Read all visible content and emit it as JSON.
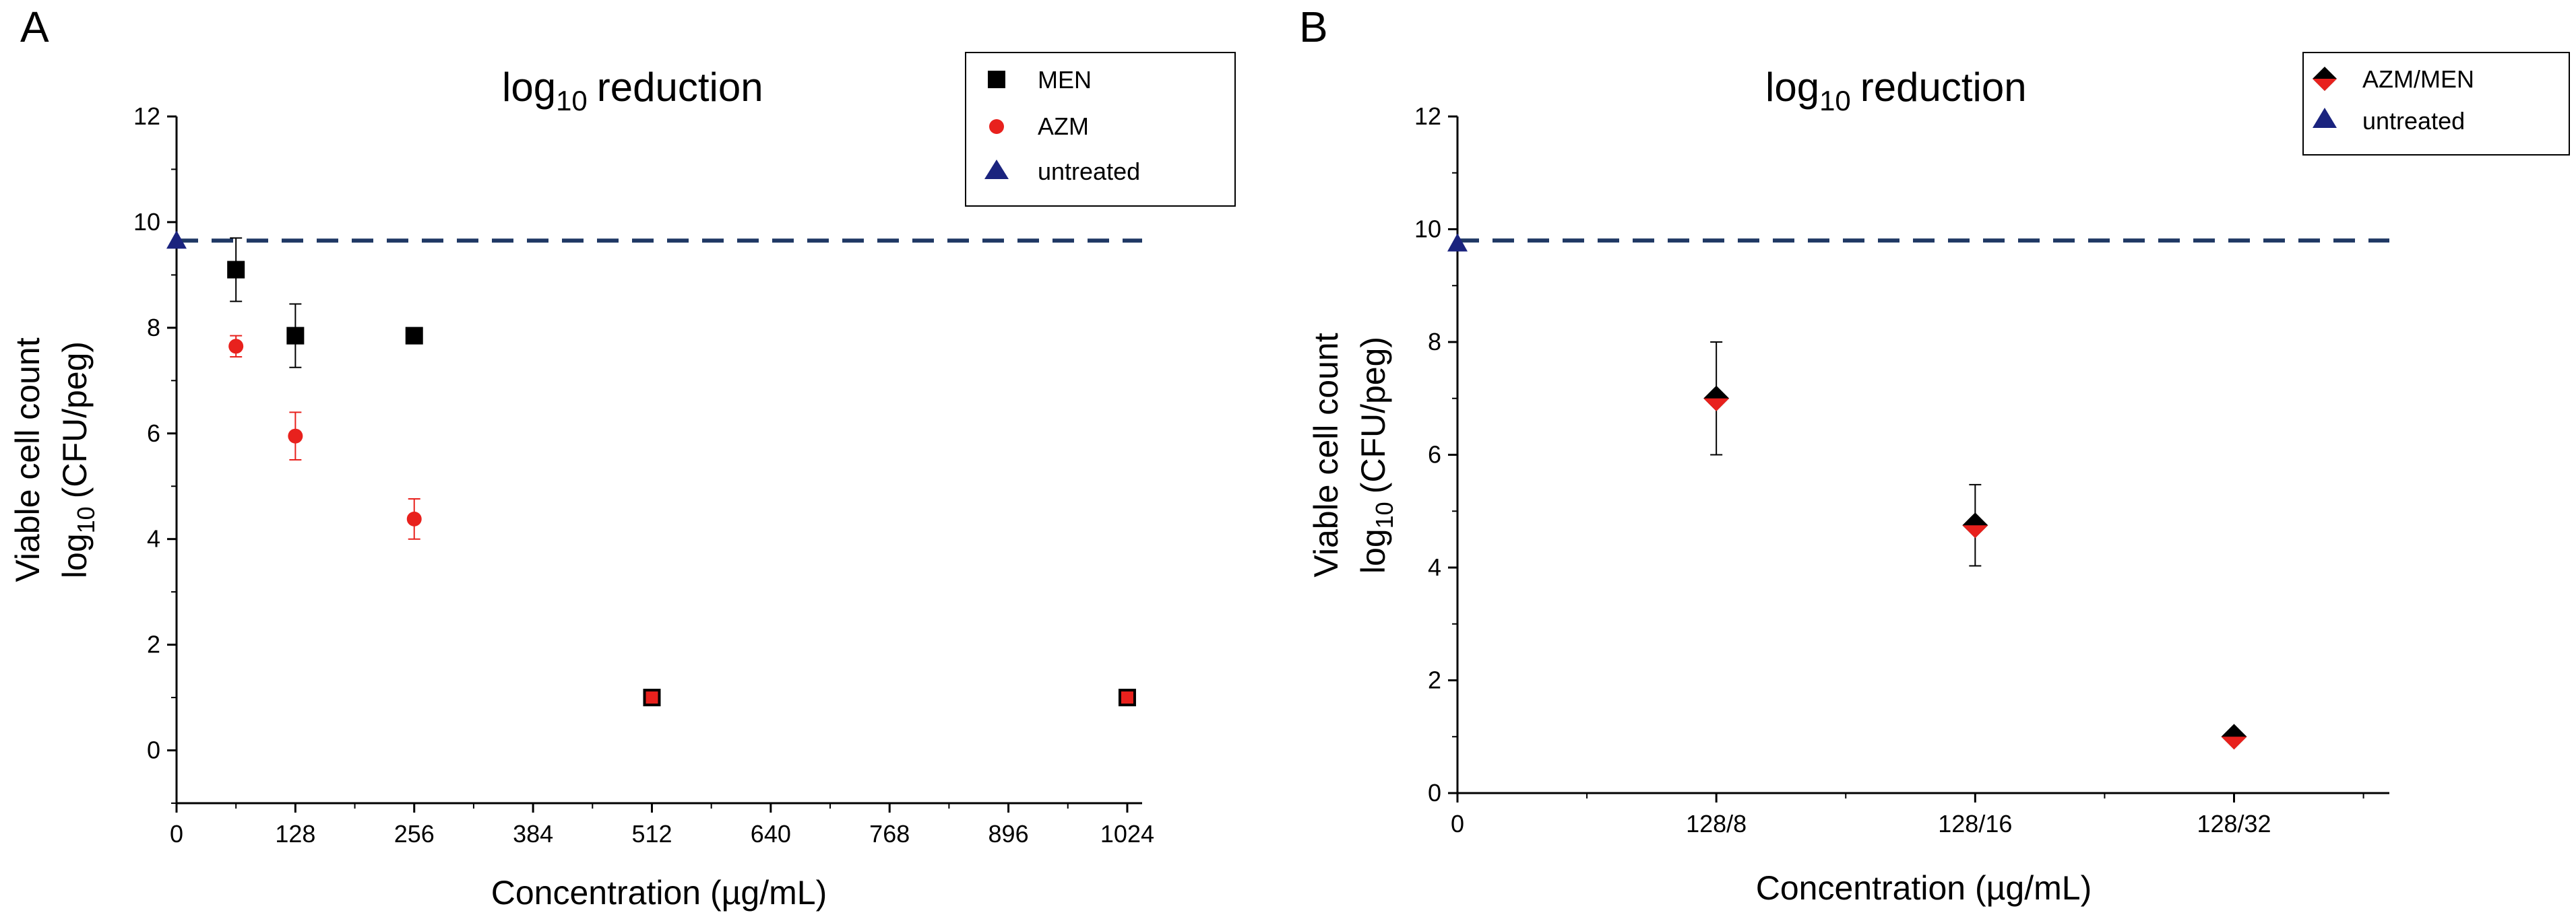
{
  "chart_data": [
    {
      "type": "scatter",
      "panel_label": "A",
      "title": "reduction",
      "title_prefix": "log",
      "title_subscript": "10",
      "xlabel": "Concentration (µg/mL)",
      "ylabel_line1": "Viable cell count",
      "ylabel_line2_prefix": "log",
      "ylabel_line2_subscript": "10",
      "ylabel_line2_suffix": "(CFU/peg)",
      "xlim": [
        0,
        1040
      ],
      "ylim": [
        -1,
        12
      ],
      "x_ticks": [
        0,
        128,
        256,
        384,
        512,
        640,
        768,
        896,
        1024
      ],
      "x_tick_labels": [
        "0",
        "128",
        "256",
        "384",
        "512",
        "640",
        "768",
        "896",
        "1024"
      ],
      "y_ticks": [
        0,
        2,
        4,
        6,
        8,
        10,
        12
      ],
      "y_tick_labels": [
        "0",
        "2",
        "4",
        "6",
        "8",
        "10",
        "12"
      ],
      "reference_line": {
        "name": "untreated",
        "y": 9.65,
        "style": "dashed",
        "color": "#1f3864"
      },
      "legend": {
        "placement": "top-right"
      },
      "series": [
        {
          "name": "MEN",
          "marker": "square",
          "color": "#000000",
          "points": [
            {
              "x": 64,
              "y": 9.1,
              "err": 0.6
            },
            {
              "x": 128,
              "y": 7.85,
              "err": 0.6
            },
            {
              "x": 256,
              "y": 7.85,
              "err": 0.1
            },
            {
              "x": 512,
              "y": 1.0,
              "err": 0
            },
            {
              "x": 1024,
              "y": 1.0,
              "err": 0
            }
          ]
        },
        {
          "name": "AZM",
          "marker": "circle",
          "color": "#e8211d",
          "points": [
            {
              "x": 64,
              "y": 7.65,
              "err": 0.2
            },
            {
              "x": 128,
              "y": 5.95,
              "err": 0.45
            },
            {
              "x": 256,
              "y": 4.38,
              "err": 0.38
            },
            {
              "x": 512,
              "y": 1.0,
              "err": 0
            },
            {
              "x": 1024,
              "y": 1.0,
              "err": 0
            }
          ]
        },
        {
          "name": "untreated",
          "marker": "triangle",
          "color": "#1a237e",
          "points": [
            {
              "x": 0,
              "y": 9.65,
              "err": 0
            }
          ]
        }
      ]
    },
    {
      "type": "scatter",
      "panel_label": "B",
      "title": "reduction",
      "title_prefix": "log",
      "title_subscript": "10",
      "xlabel": "Concentration (µg/mL)",
      "ylabel_line1": "Viable cell count",
      "ylabel_line2_prefix": "log",
      "ylabel_line2_subscript": "10",
      "ylabel_line2_suffix": "(CFU/peg)",
      "xlim": [
        0,
        3.6
      ],
      "ylim": [
        0,
        12
      ],
      "x_ticks": [
        0,
        1,
        2,
        3
      ],
      "x_tick_labels": [
        "0",
        "128/8",
        "128/16",
        "128/32"
      ],
      "x_minor_ticks": [
        0.5,
        1.5,
        2.5,
        3.5
      ],
      "y_ticks": [
        0,
        2,
        4,
        6,
        8,
        10,
        12
      ],
      "y_tick_labels": [
        "0",
        "2",
        "4",
        "6",
        "8",
        "10",
        "12"
      ],
      "reference_line": {
        "name": "untreated",
        "y": 9.8,
        "style": "dashed",
        "color": "#1f3864"
      },
      "legend": {
        "placement": "top-right"
      },
      "series": [
        {
          "name": "AZM/MEN",
          "marker": "diamond",
          "color": "#000000",
          "fill_lower": "#e8211d",
          "points": [
            {
              "x": 1,
              "y": 7.0,
              "err": 1.0
            },
            {
              "x": 2,
              "y": 4.75,
              "err": 0.72
            },
            {
              "x": 3,
              "y": 1.0,
              "err": 0
            }
          ]
        },
        {
          "name": "untreated",
          "marker": "triangle",
          "color": "#1a237e",
          "points": [
            {
              "x": 0,
              "y": 9.75,
              "err": 0
            }
          ]
        }
      ]
    }
  ]
}
